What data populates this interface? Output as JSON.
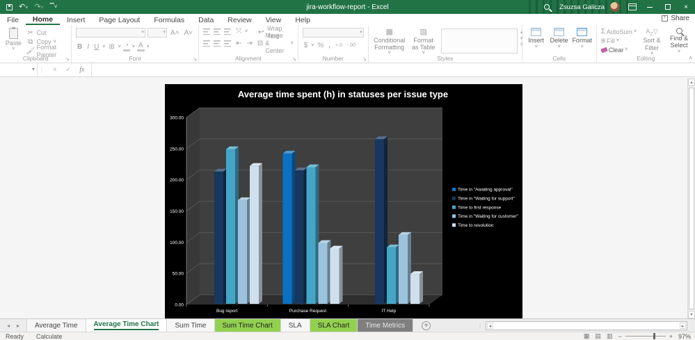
{
  "titlebar": {
    "title": "jira-workflow-report - Excel",
    "user": "Zsuzsa Galicza"
  },
  "ribbon_tabs": [
    {
      "label": "File"
    },
    {
      "label": "Home"
    },
    {
      "label": "Insert"
    },
    {
      "label": "Page Layout"
    },
    {
      "label": "Formulas"
    },
    {
      "label": "Data"
    },
    {
      "label": "Review"
    },
    {
      "label": "View"
    },
    {
      "label": "Help"
    }
  ],
  "active_ribbon_tab": "Home",
  "ribbon": {
    "share_label": "Share",
    "clipboard": {
      "label": "Clipboard",
      "paste": "Paste",
      "cut": "Cut",
      "copy": "Copy",
      "format_painter": "Format Painter"
    },
    "font": {
      "label": "Font",
      "bold": "B",
      "italic": "I",
      "underline": "U"
    },
    "alignment": {
      "label": "Alignment",
      "wrap_text": "Wrap Text",
      "merge_center": "Merge & Center"
    },
    "number": {
      "label": "Number",
      "currency": "$",
      "percent": "%",
      "comma": ","
    },
    "styles": {
      "label": "Styles",
      "conditional_formatting": "Conditional Formatting",
      "format_as_table": "Format as Table"
    },
    "cells": {
      "label": "Cells",
      "insert": "Insert",
      "delete": "Delete",
      "format": "Format"
    },
    "editing": {
      "label": "Editing",
      "autosum": "AutoSum",
      "fill": "Fill",
      "clear": "Clear",
      "sort_filter": "Sort & Filter",
      "find_select": "Find & Select"
    }
  },
  "formula_bar": {
    "name_box": "",
    "formula": ""
  },
  "chart_data": {
    "type": "bar",
    "subtype": "3d-clustered-column",
    "title": "Average time spent (h) in statuses per issue type",
    "background": "#000000",
    "categories": [
      "Bug report",
      "Purchase Request",
      "IT Help"
    ],
    "series": [
      {
        "name": "Time in \"Awaiting approval\"",
        "color": "#0C71C3",
        "values": [
          0,
          242,
          0
        ]
      },
      {
        "name": "Time in \"Waiting for support\"",
        "color": "#17375E",
        "values": [
          213,
          215,
          265
        ]
      },
      {
        "name": "Time to first response",
        "color": "#45A5C6",
        "values": [
          249,
          220,
          91
        ]
      },
      {
        "name": "Time in \"Waiting for customer\"",
        "color": "#9DC3DC",
        "values": [
          167,
          98,
          111
        ]
      },
      {
        "name": "Time to resolution",
        "color": "#CFE0EC",
        "values": [
          222,
          89,
          48
        ]
      }
    ],
    "ylim": [
      0,
      300
    ],
    "ytick_step": 50,
    "grid": true,
    "legend_position": "right"
  },
  "sheet_tabs": {
    "tabs": [
      {
        "label": "Average Time",
        "style": "normal"
      },
      {
        "label": "Average Time Chart",
        "style": "active"
      },
      {
        "label": "Sum Time",
        "style": "normal"
      },
      {
        "label": "Sum Time Chart",
        "style": "green"
      },
      {
        "label": "SLA",
        "style": "normal"
      },
      {
        "label": "SLA Chart",
        "style": "green"
      },
      {
        "label": "Time Metrics",
        "style": "dark"
      }
    ]
  },
  "status_bar": {
    "ready": "Ready",
    "calculate": "Calculate",
    "zoom": "97%"
  },
  "colors": {
    "excel_green": "#217346",
    "sheet_tab_green": "#92D050",
    "chart_bg": "#000000"
  }
}
